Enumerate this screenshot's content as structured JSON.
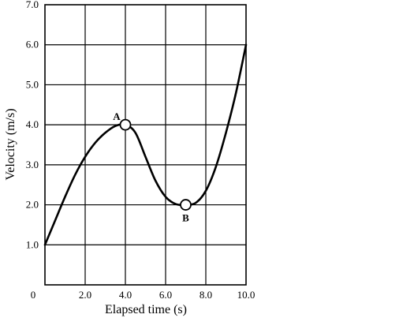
{
  "chart_data": {
    "type": "line",
    "xlabel": "Elapsed time (s)",
    "ylabel": "Velocity (m/s)",
    "xlim": [
      0,
      10
    ],
    "ylim": [
      0,
      7
    ],
    "x_ticks": [
      0,
      2,
      4,
      6,
      8,
      10
    ],
    "x_tick_labels": [
      "0",
      "2.0",
      "4.0",
      "6.0",
      "8.0",
      "10.0"
    ],
    "y_ticks": [
      1,
      2,
      3,
      4,
      5,
      6,
      7
    ],
    "y_tick_labels": [
      "1.0",
      "2.0",
      "3.0",
      "4.0",
      "5.0",
      "6.0",
      "7.0"
    ],
    "grid": true,
    "series": [
      {
        "x": [
          0,
          0.5,
          1,
          1.5,
          2,
          2.5,
          3,
          3.5,
          4,
          4.5,
          5,
          5.5,
          6,
          6.5,
          7,
          7.5,
          8,
          8.5,
          9,
          9.5,
          10
        ],
        "values": [
          1.0,
          1.6,
          2.2,
          2.75,
          3.2,
          3.55,
          3.8,
          3.97,
          4.0,
          3.8,
          3.2,
          2.6,
          2.2,
          2.02,
          2.0,
          2.05,
          2.35,
          2.95,
          3.8,
          4.8,
          6.0
        ],
        "color": "#000000"
      }
    ],
    "points": [
      {
        "label": "A",
        "x": 4.0,
        "y": 4.0
      },
      {
        "label": "B",
        "x": 7.0,
        "y": 2.0
      }
    ]
  }
}
